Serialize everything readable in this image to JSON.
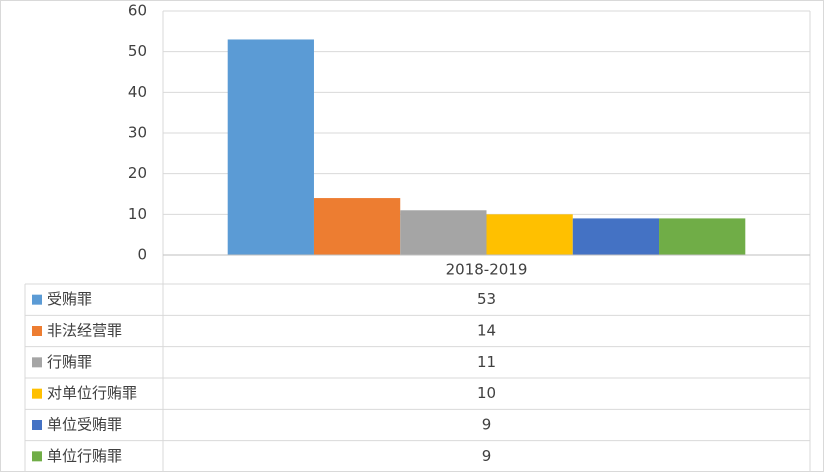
{
  "chart_data": {
    "type": "bar",
    "categories": [
      "2018-2019"
    ],
    "series": [
      {
        "name": "受贿罪",
        "color": "#5b9bd5",
        "values": [
          53
        ]
      },
      {
        "name": "非法经营罪",
        "color": "#ed7d31",
        "values": [
          14
        ]
      },
      {
        "name": "行贿罪",
        "color": "#a5a5a5",
        "values": [
          11
        ]
      },
      {
        "name": "对单位行贿罪",
        "color": "#ffc000",
        "values": [
          10
        ]
      },
      {
        "name": "单位受贿罪",
        "color": "#4472c4",
        "values": [
          9
        ]
      },
      {
        "name": "单位行贿罪",
        "color": "#70ad47",
        "values": [
          9
        ]
      }
    ],
    "ylim": [
      0,
      60
    ],
    "yticks": [
      0,
      10,
      20,
      30,
      40,
      50,
      60
    ],
    "grid": true,
    "data_table": true
  }
}
